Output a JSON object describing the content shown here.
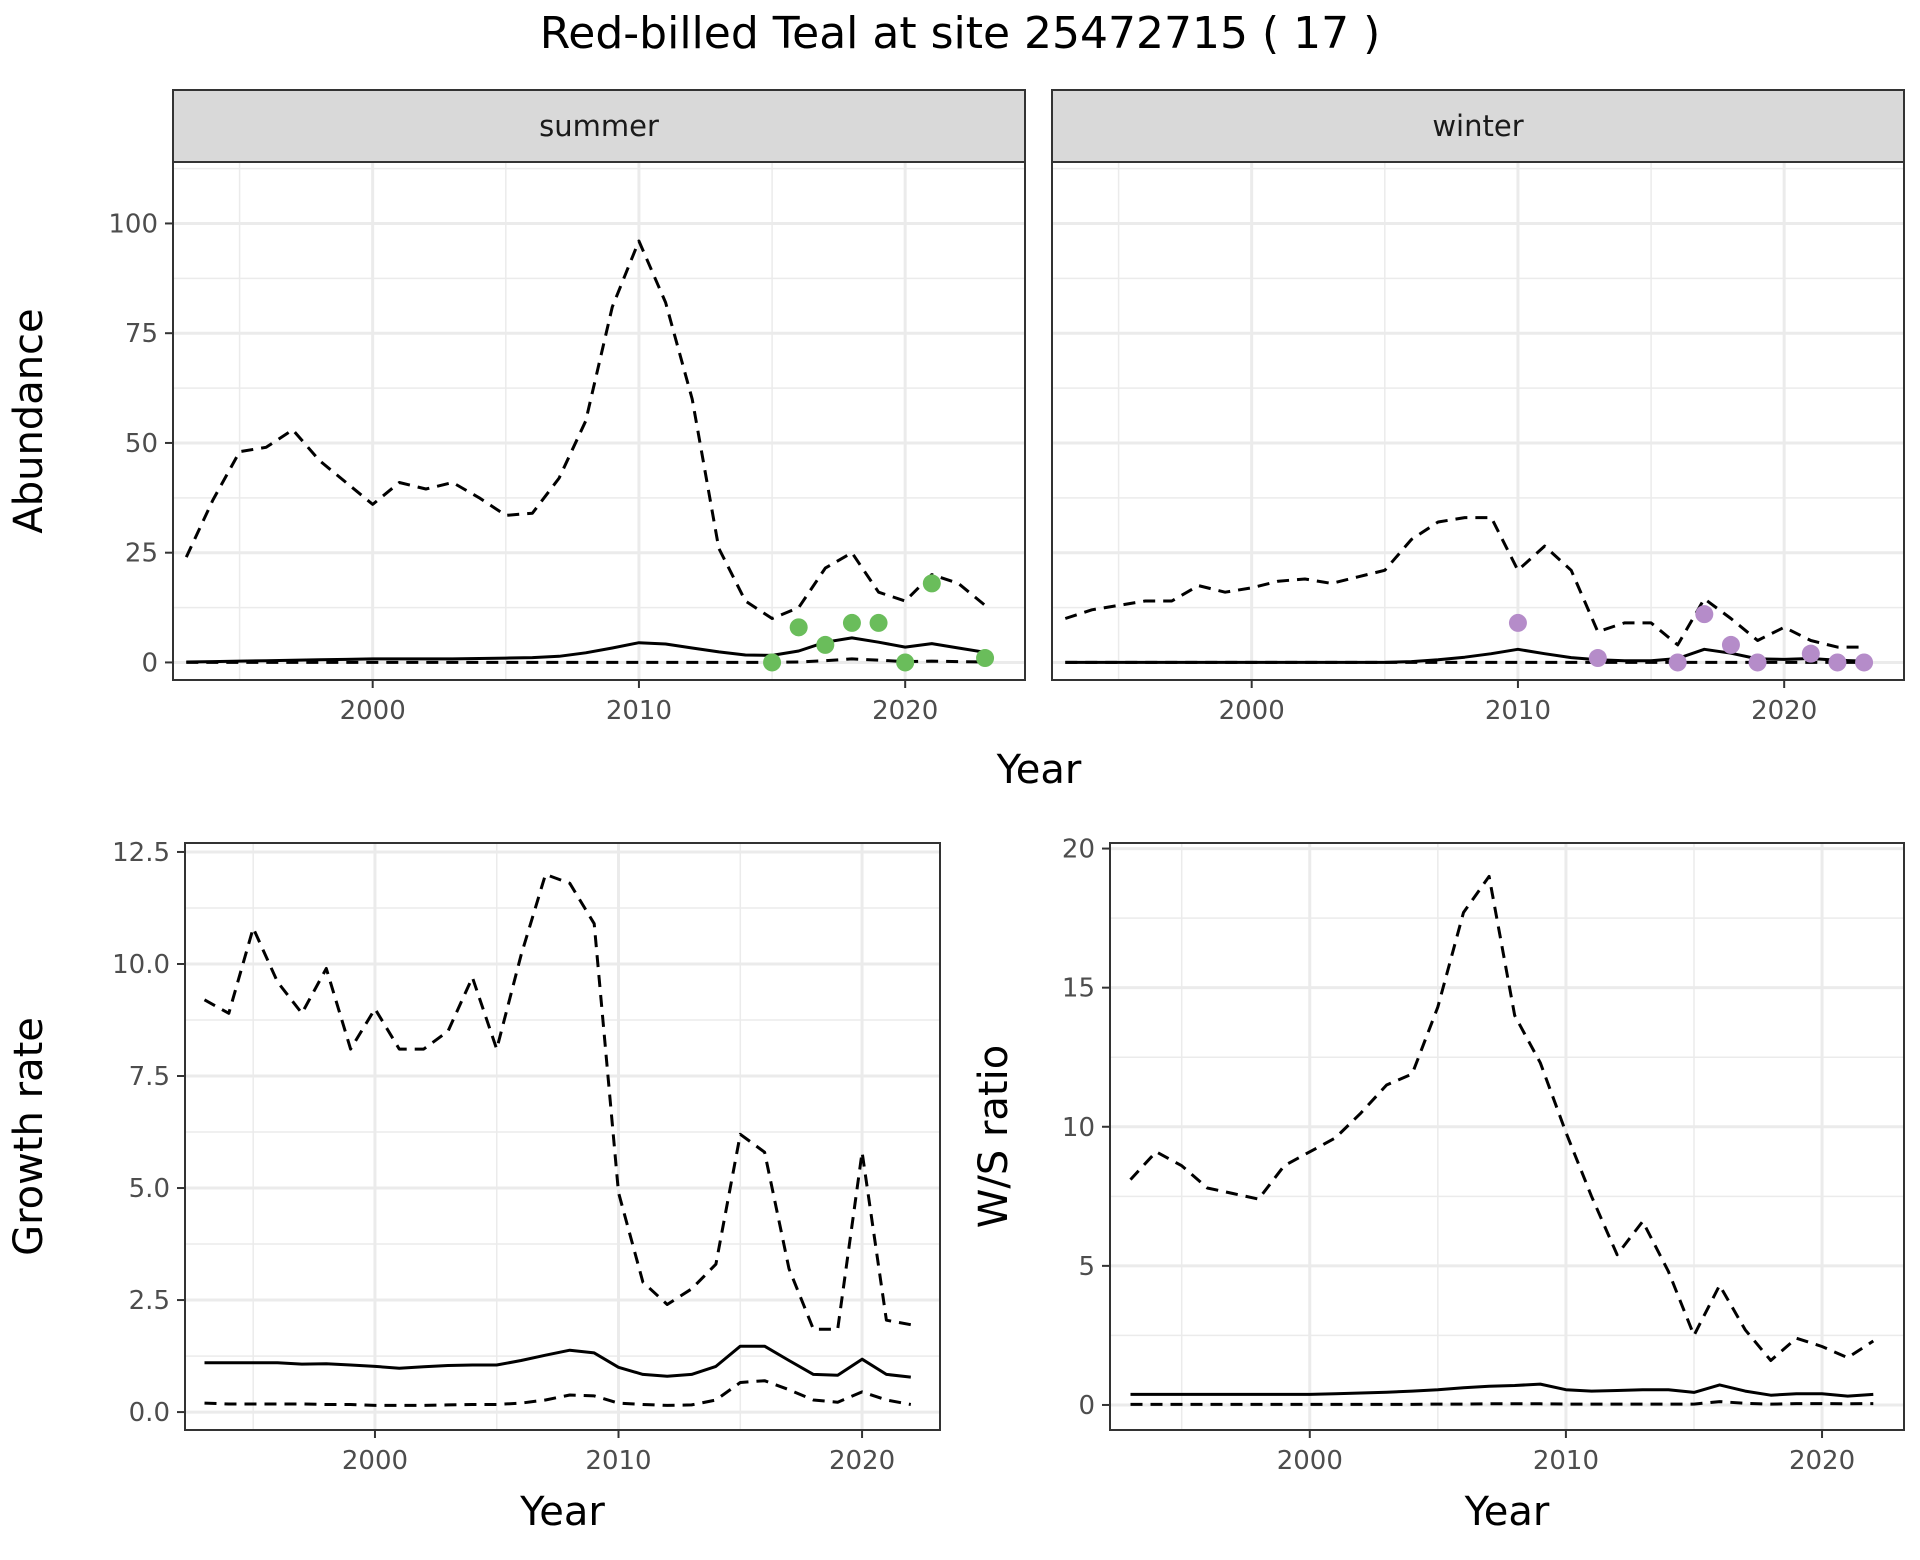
{
  "title": "Red-billed Teal at site 25472715 ( 17 )",
  "colors": {
    "summer_points": "#6abd5b",
    "winter_points": "#b58cc9",
    "line": "#000000",
    "grid": "#ebebeb",
    "strip_bg": "#d9d9d9"
  },
  "chart_data": [
    {
      "type": "line",
      "facet": "summer",
      "xlabel": "Year",
      "ylabel": "Abundance",
      "xlim": [
        1992.5,
        2024.5
      ],
      "ylim": [
        -4,
        114
      ],
      "x_ticks": [
        2000,
        2010,
        2020
      ],
      "y_ticks": [
        0,
        25,
        50,
        75,
        100
      ],
      "series": [
        {
          "role": "estimate",
          "style": "solid",
          "x": [
            1993,
            1994,
            1995,
            1996,
            1997,
            1998,
            1999,
            2000,
            2001,
            2002,
            2003,
            2004,
            2005,
            2006,
            2007,
            2008,
            2009,
            2010,
            2011,
            2012,
            2013,
            2014,
            2015,
            2016,
            2017,
            2018,
            2019,
            2020,
            2021,
            2022,
            2023
          ],
          "y": [
            0.1,
            0.2,
            0.3,
            0.4,
            0.5,
            0.6,
            0.7,
            0.8,
            0.8,
            0.8,
            0.8,
            0.9,
            1.0,
            1.1,
            1.4,
            2.2,
            3.3,
            4.5,
            4.2,
            3.3,
            2.4,
            1.7,
            1.6,
            2.6,
            4.6,
            5.6,
            4.6,
            3.5,
            4.3,
            3.3,
            2.3
          ]
        },
        {
          "role": "upper",
          "style": "dashed",
          "x": [
            1993,
            1994,
            1995,
            1996,
            1997,
            1998,
            1999,
            2000,
            2001,
            2002,
            2003,
            2004,
            2005,
            2006,
            2007,
            2008,
            2009,
            2010,
            2011,
            2012,
            2013,
            2014,
            2015,
            2016,
            2017,
            2018,
            2019,
            2020,
            2021,
            2022,
            2023
          ],
          "y": [
            24,
            37,
            48,
            49,
            53,
            46,
            41,
            36,
            41,
            39.5,
            41,
            37.5,
            33.5,
            34,
            42,
            55,
            81,
            96,
            82,
            60,
            26,
            14,
            10,
            12.5,
            21.5,
            25,
            16,
            14,
            20,
            18,
            13
          ]
        },
        {
          "role": "lower",
          "style": "dashed",
          "x": [
            1993,
            1994,
            1995,
            1996,
            1997,
            1998,
            1999,
            2000,
            2001,
            2002,
            2003,
            2004,
            2005,
            2006,
            2007,
            2008,
            2009,
            2010,
            2011,
            2012,
            2013,
            2014,
            2015,
            2016,
            2017,
            2018,
            2019,
            2020,
            2021,
            2022,
            2023
          ],
          "y": [
            0,
            0,
            0,
            0,
            0,
            0,
            0,
            0,
            0,
            0,
            0,
            0,
            0,
            0,
            0,
            0,
            0,
            0,
            0,
            0,
            0,
            0,
            0,
            0.1,
            0.4,
            0.8,
            0.5,
            0.2,
            0.3,
            0.2,
            0.1
          ]
        }
      ],
      "points": {
        "x": [
          2015,
          2016,
          2017,
          2018,
          2019,
          2020,
          2021,
          2023
        ],
        "y": [
          0,
          8,
          4,
          9,
          9,
          0,
          18,
          1
        ]
      }
    },
    {
      "type": "line",
      "facet": "winter",
      "xlabel": "Year",
      "ylabel": "Abundance",
      "xlim": [
        1992.5,
        2024.5
      ],
      "ylim": [
        -4,
        114
      ],
      "x_ticks": [
        2000,
        2010,
        2020
      ],
      "y_ticks": [
        0,
        25,
        50,
        75,
        100
      ],
      "series": [
        {
          "role": "estimate",
          "style": "solid",
          "x": [
            1993,
            1994,
            1995,
            1996,
            1997,
            1998,
            1999,
            2000,
            2001,
            2002,
            2003,
            2004,
            2005,
            2006,
            2007,
            2008,
            2009,
            2010,
            2011,
            2012,
            2013,
            2014,
            2015,
            2016,
            2017,
            2018,
            2019,
            2020,
            2021,
            2022,
            2023
          ],
          "y": [
            0,
            0,
            0,
            0,
            0,
            0,
            0,
            0,
            0,
            0,
            0,
            0,
            0,
            0.2,
            0.6,
            1.2,
            2,
            3,
            2,
            1.1,
            0.6,
            0.4,
            0.4,
            0.9,
            3,
            2.1,
            0.8,
            0.7,
            0.9,
            0.5,
            0.3
          ]
        },
        {
          "role": "upper",
          "style": "dashed",
          "x": [
            1993,
            1994,
            1995,
            1996,
            1997,
            1998,
            1999,
            2000,
            2001,
            2002,
            2003,
            2004,
            2005,
            2006,
            2007,
            2008,
            2009,
            2010,
            2011,
            2012,
            2013,
            2014,
            2015,
            2016,
            2017,
            2018,
            2019,
            2020,
            2021,
            2022,
            2023
          ],
          "y": [
            10,
            12,
            13,
            14,
            14,
            17.5,
            16,
            17,
            18.5,
            19,
            18,
            19.5,
            21,
            28,
            32,
            33,
            33,
            21,
            26.5,
            21,
            7,
            9,
            9,
            4,
            14.5,
            10,
            5,
            8,
            5,
            3.5,
            3.5
          ]
        },
        {
          "role": "lower",
          "style": "dashed",
          "x": [
            1993,
            1994,
            1995,
            1996,
            1997,
            1998,
            1999,
            2000,
            2001,
            2002,
            2003,
            2004,
            2005,
            2006,
            2007,
            2008,
            2009,
            2010,
            2011,
            2012,
            2013,
            2014,
            2015,
            2016,
            2017,
            2018,
            2019,
            2020,
            2021,
            2022,
            2023
          ],
          "y": [
            0,
            0,
            0,
            0,
            0,
            0,
            0,
            0,
            0,
            0,
            0,
            0,
            0,
            0,
            0,
            0,
            0,
            0,
            0,
            0,
            0,
            0,
            0,
            0,
            0,
            0,
            0,
            0,
            0,
            0,
            0
          ]
        }
      ],
      "points": {
        "x": [
          2010,
          2013,
          2016,
          2017,
          2018,
          2019,
          2021,
          2022,
          2023
        ],
        "y": [
          9,
          1,
          0,
          11,
          4,
          0,
          2,
          0,
          0
        ]
      }
    },
    {
      "type": "line",
      "xlabel": "Year",
      "ylabel": "Growth rate",
      "xlim": [
        1992.2,
        2023.2
      ],
      "ylim": [
        -0.4,
        12.7
      ],
      "x_ticks": [
        2000,
        2010,
        2020
      ],
      "y_ticks": [
        0.0,
        2.5,
        5.0,
        7.5,
        10.0,
        12.5
      ],
      "y_tick_labels": [
        "0.0",
        "2.5",
        "5.0",
        "7.5",
        "10.0",
        "12.5"
      ],
      "series": [
        {
          "role": "estimate",
          "style": "solid",
          "x": [
            1993,
            1994,
            1995,
            1996,
            1997,
            1998,
            1999,
            2000,
            2001,
            2002,
            2003,
            2004,
            2005,
            2006,
            2007,
            2008,
            2009,
            2010,
            2011,
            2012,
            2013,
            2014,
            2015,
            2016,
            2017,
            2018,
            2019,
            2020,
            2021,
            2022
          ],
          "y": [
            1.1,
            1.1,
            1.1,
            1.1,
            1.07,
            1.08,
            1.05,
            1.02,
            0.98,
            1.01,
            1.04,
            1.05,
            1.05,
            1.15,
            1.27,
            1.38,
            1.32,
            1.0,
            0.84,
            0.8,
            0.84,
            1.02,
            1.47,
            1.47,
            1.15,
            0.84,
            0.82,
            1.18,
            0.84,
            0.78
          ]
        },
        {
          "role": "upper",
          "style": "dashed",
          "x": [
            1993,
            1994,
            1995,
            1996,
            1997,
            1998,
            1999,
            2000,
            2001,
            2002,
            2003,
            2004,
            2005,
            2006,
            2007,
            2008,
            2009,
            2010,
            2011,
            2012,
            2013,
            2014,
            2015,
            2016,
            2017,
            2018,
            2019,
            2020,
            2021,
            2022
          ],
          "y": [
            9.2,
            8.9,
            10.8,
            9.6,
            8.9,
            9.9,
            8.1,
            9.0,
            8.1,
            8.1,
            8.5,
            9.7,
            8.1,
            10.2,
            12.0,
            11.8,
            10.9,
            4.9,
            2.9,
            2.4,
            2.75,
            3.3,
            6.2,
            5.8,
            3.2,
            1.85,
            1.85,
            5.8,
            2.05,
            1.95
          ]
        },
        {
          "role": "lower",
          "style": "dashed",
          "x": [
            1993,
            1994,
            1995,
            1996,
            1997,
            1998,
            1999,
            2000,
            2001,
            2002,
            2003,
            2004,
            2005,
            2006,
            2007,
            2008,
            2009,
            2010,
            2011,
            2012,
            2013,
            2014,
            2015,
            2016,
            2017,
            2018,
            2019,
            2020,
            2021,
            2022
          ],
          "y": [
            0.2,
            0.18,
            0.18,
            0.18,
            0.18,
            0.17,
            0.17,
            0.15,
            0.15,
            0.15,
            0.16,
            0.17,
            0.17,
            0.2,
            0.27,
            0.38,
            0.36,
            0.2,
            0.17,
            0.15,
            0.16,
            0.27,
            0.66,
            0.7,
            0.5,
            0.27,
            0.22,
            0.45,
            0.27,
            0.17
          ]
        }
      ]
    },
    {
      "type": "line",
      "xlabel": "Year",
      "ylabel": "W/S ratio",
      "xlim": [
        1992.2,
        2023.2
      ],
      "ylim": [
        -0.9,
        20.2
      ],
      "x_ticks": [
        2000,
        2010,
        2020
      ],
      "y_ticks": [
        0,
        5,
        10,
        15,
        20
      ],
      "series": [
        {
          "role": "estimate",
          "style": "solid",
          "x": [
            1993,
            1994,
            1995,
            1996,
            1997,
            1998,
            1999,
            2000,
            2001,
            2002,
            2003,
            2004,
            2005,
            2006,
            2007,
            2008,
            2009,
            2010,
            2011,
            2012,
            2013,
            2014,
            2015,
            2016,
            2017,
            2018,
            2019,
            2020,
            2021,
            2022
          ],
          "y": [
            0.38,
            0.38,
            0.38,
            0.38,
            0.38,
            0.38,
            0.38,
            0.38,
            0.4,
            0.43,
            0.46,
            0.5,
            0.55,
            0.62,
            0.67,
            0.7,
            0.75,
            0.55,
            0.5,
            0.52,
            0.55,
            0.55,
            0.45,
            0.72,
            0.5,
            0.35,
            0.4,
            0.4,
            0.32,
            0.38
          ]
        },
        {
          "role": "upper",
          "style": "dashed",
          "x": [
            1993,
            1994,
            1995,
            1996,
            1997,
            1998,
            1999,
            2000,
            2001,
            2002,
            2003,
            2004,
            2005,
            2006,
            2007,
            2008,
            2009,
            2010,
            2011,
            2012,
            2013,
            2014,
            2015,
            2016,
            2017,
            2018,
            2019,
            2020,
            2021,
            2022
          ],
          "y": [
            8.1,
            9.1,
            8.6,
            7.8,
            7.6,
            7.4,
            8.6,
            9.1,
            9.6,
            10.5,
            11.5,
            11.9,
            14.3,
            17.7,
            19.0,
            14.0,
            12.3,
            9.8,
            7.5,
            5.4,
            6.6,
            4.8,
            2.5,
            4.3,
            2.7,
            1.6,
            2.4,
            2.1,
            1.7,
            2.3
          ]
        },
        {
          "role": "lower",
          "style": "dashed",
          "x": [
            1993,
            1994,
            1995,
            1996,
            1997,
            1998,
            1999,
            2000,
            2001,
            2002,
            2003,
            2004,
            2005,
            2006,
            2007,
            2008,
            2009,
            2010,
            2011,
            2012,
            2013,
            2014,
            2015,
            2016,
            2017,
            2018,
            2019,
            2020,
            2021,
            2022
          ],
          "y": [
            0.02,
            0.02,
            0.02,
            0.02,
            0.02,
            0.02,
            0.02,
            0.02,
            0.02,
            0.02,
            0.02,
            0.02,
            0.03,
            0.03,
            0.04,
            0.04,
            0.04,
            0.03,
            0.03,
            0.03,
            0.03,
            0.03,
            0.03,
            0.12,
            0.06,
            0.03,
            0.05,
            0.05,
            0.04,
            0.05
          ]
        }
      ]
    }
  ]
}
